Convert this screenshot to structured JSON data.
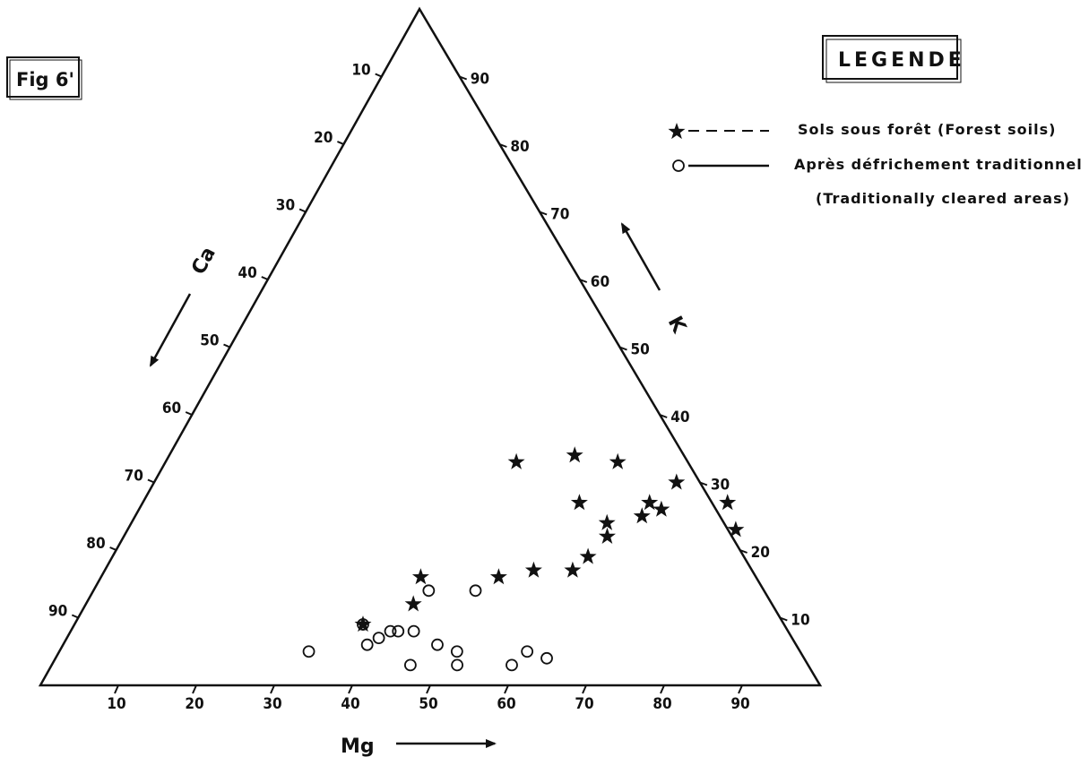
{
  "figure_label": "Fig 6'",
  "legend_title": "LEGENDE",
  "colors": {
    "ink": "#111111",
    "background": "#ffffff"
  },
  "chart_data": {
    "type": "scatter",
    "subtype": "ternary",
    "axes": {
      "bottom": {
        "name": "Mg",
        "ticks": [
          "10",
          "20",
          "30",
          "40",
          "50",
          "60",
          "70",
          "80",
          "90"
        ]
      },
      "left": {
        "name": "Ca",
        "ticks": [
          "10",
          "20",
          "30",
          "40",
          "50",
          "60",
          "70",
          "80",
          "90"
        ]
      },
      "right": {
        "name": "K",
        "ticks": [
          "90",
          "80",
          "70",
          "60",
          "50",
          "40",
          "30",
          "20",
          "10"
        ]
      }
    },
    "legend": [
      {
        "symbol": "star-icon",
        "line": "dashed",
        "label": "Sols sous forêt   (Forest soils)"
      },
      {
        "symbol": "circle-icon",
        "line": "solid",
        "label": "Après défrichement traditionnel",
        "label2": "(Traditionally cleared areas)"
      }
    ],
    "series": [
      {
        "name": "Sols sous forêt (Forest soils)",
        "marker": "star",
        "points": [
          {
            "K": 34,
            "Mg": 52,
            "Ca": 14
          },
          {
            "K": 33,
            "Mg": 58,
            "Ca": 9
          },
          {
            "K": 27,
            "Mg": 56,
            "Ca": 17
          },
          {
            "K": 33,
            "Mg": 45,
            "Ca": 22
          },
          {
            "K": 27,
            "Mg": 65,
            "Ca": 8
          },
          {
            "K": 30,
            "Mg": 67,
            "Ca": 3
          },
          {
            "K": 26,
            "Mg": 67,
            "Ca": 7
          },
          {
            "K": 24,
            "Mg": 61,
            "Ca": 15
          },
          {
            "K": 25,
            "Mg": 65,
            "Ca": 10
          },
          {
            "K": 22,
            "Mg": 62,
            "Ca": 16
          },
          {
            "K": 27,
            "Mg": 75,
            "Ca": -2
          },
          {
            "K": 23,
            "Mg": 78,
            "Ca": -1
          },
          {
            "K": 17,
            "Mg": 55,
            "Ca": 28
          },
          {
            "K": 17,
            "Mg": 60,
            "Ca": 23
          },
          {
            "K": 19,
            "Mg": 61,
            "Ca": 20
          },
          {
            "K": 16,
            "Mg": 51,
            "Ca": 33
          },
          {
            "K": 16,
            "Mg": 41,
            "Ca": 43
          },
          {
            "K": 12,
            "Mg": 42,
            "Ca": 46
          },
          {
            "K": 9,
            "Mg": 37,
            "Ca": 54
          }
        ]
      },
      {
        "name": "Après défrichement traditionnel (Traditionally cleared areas)",
        "marker": "circle",
        "points": [
          {
            "K": 14,
            "Mg": 43,
            "Ca": 43
          },
          {
            "K": 14,
            "Mg": 49,
            "Ca": 37
          },
          {
            "K": 9,
            "Mg": 37,
            "Ca": 54
          },
          {
            "K": 7,
            "Mg": 40,
            "Ca": 53
          },
          {
            "K": 8,
            "Mg": 41,
            "Ca": 51
          },
          {
            "K": 8,
            "Mg": 42,
            "Ca": 50
          },
          {
            "K": 8,
            "Mg": 44,
            "Ca": 48
          },
          {
            "K": 6,
            "Mg": 39,
            "Ca": 55
          },
          {
            "K": 5,
            "Mg": 32,
            "Ca": 63
          },
          {
            "K": 6,
            "Mg": 48,
            "Ca": 46
          },
          {
            "K": 5,
            "Mg": 51,
            "Ca": 44
          },
          {
            "K": 3,
            "Mg": 46,
            "Ca": 51
          },
          {
            "K": 3,
            "Mg": 52,
            "Ca": 45
          },
          {
            "K": 5,
            "Mg": 60,
            "Ca": 35
          },
          {
            "K": 3,
            "Mg": 59,
            "Ca": 38
          },
          {
            "K": 4,
            "Mg": 63,
            "Ca": 33
          }
        ]
      }
    ]
  }
}
